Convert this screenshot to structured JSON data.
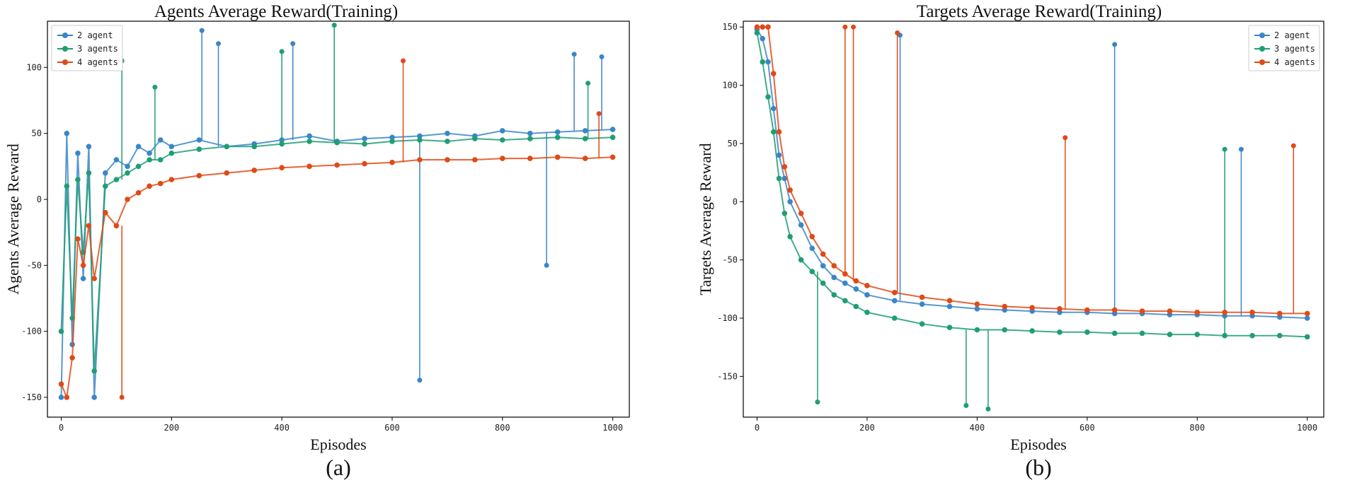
{
  "colors": {
    "series": [
      "#3a86c8",
      "#1f9e74",
      "#e04a16"
    ],
    "axis": "#000000",
    "text": "#111111"
  },
  "chart_data": [
    {
      "type": "line",
      "title": "Agents Average Reward(Training)",
      "xlabel": "Episodes",
      "ylabel": "Agents Average Reward",
      "caption": "(a)",
      "xlim": [
        -25,
        1030
      ],
      "ylim": [
        -165,
        135
      ],
      "xticks": [
        0,
        200,
        400,
        600,
        800,
        1000
      ],
      "xtick_labels": [
        "0",
        "200",
        "400",
        "600",
        "800",
        "1000"
      ],
      "yticks": [
        -150,
        -100,
        -50,
        0,
        50,
        100
      ],
      "ytick_labels": [
        "-150",
        "-100",
        "-50",
        "0",
        "50",
        "100"
      ],
      "legend": {
        "position": "top-left",
        "entries": [
          "2 agent",
          "3 agents",
          "4 agents"
        ]
      },
      "series": [
        {
          "name": "2 agent",
          "x": [
            0,
            10,
            20,
            30,
            40,
            50,
            60,
            80,
            100,
            120,
            140,
            160,
            180,
            200,
            250,
            300,
            350,
            400,
            450,
            500,
            550,
            600,
            650,
            700,
            750,
            800,
            850,
            900,
            950,
            1000
          ],
          "values": [
            -150,
            50,
            -110,
            35,
            -60,
            40,
            -150,
            20,
            30,
            25,
            40,
            35,
            45,
            40,
            45,
            40,
            42,
            45,
            48,
            44,
            46,
            47,
            48,
            50,
            48,
            52,
            50,
            51,
            52,
            53
          ],
          "spikes": [
            [
              255,
              128
            ],
            [
              285,
              118
            ],
            [
              420,
              118
            ],
            [
              650,
              -137
            ],
            [
              880,
              -50
            ],
            [
              930,
              110
            ],
            [
              980,
              108
            ]
          ]
        },
        {
          "name": "3 agents",
          "x": [
            0,
            10,
            20,
            30,
            40,
            50,
            60,
            80,
            100,
            120,
            140,
            160,
            180,
            200,
            250,
            300,
            350,
            400,
            450,
            500,
            550,
            600,
            650,
            700,
            750,
            800,
            850,
            900,
            950,
            1000
          ],
          "values": [
            -100,
            10,
            -90,
            15,
            -40,
            20,
            -130,
            10,
            15,
            20,
            25,
            30,
            30,
            35,
            38,
            40,
            40,
            42,
            44,
            43,
            42,
            44,
            45,
            44,
            46,
            45,
            46,
            47,
            46,
            47
          ],
          "spikes": [
            [
              110,
              105
            ],
            [
              170,
              85
            ],
            [
              400,
              112
            ],
            [
              495,
              132
            ],
            [
              955,
              88
            ]
          ]
        },
        {
          "name": "4 agents",
          "x": [
            0,
            10,
            20,
            30,
            40,
            50,
            60,
            80,
            100,
            120,
            140,
            160,
            180,
            200,
            250,
            300,
            350,
            400,
            450,
            500,
            550,
            600,
            650,
            700,
            750,
            800,
            850,
            900,
            950,
            1000
          ],
          "values": [
            -140,
            -150,
            -120,
            -30,
            -50,
            -20,
            -60,
            -10,
            -20,
            0,
            5,
            10,
            12,
            15,
            18,
            20,
            22,
            24,
            25,
            26,
            27,
            28,
            30,
            30,
            30,
            31,
            31,
            32,
            31,
            32
          ],
          "spikes": [
            [
              110,
              -150
            ],
            [
              620,
              105
            ],
            [
              975,
              65
            ]
          ]
        }
      ]
    },
    {
      "type": "line",
      "title": "Targets Average Reward(Training)",
      "xlabel": "Episodes",
      "ylabel": "Targets Average Reward",
      "caption": "(b)",
      "xlim": [
        -25,
        1030
      ],
      "ylim": [
        -185,
        155
      ],
      "xticks": [
        0,
        200,
        400,
        600,
        800,
        1000
      ],
      "xtick_labels": [
        "0",
        "200",
        "400",
        "600",
        "800",
        "1000"
      ],
      "yticks": [
        -150,
        -100,
        -50,
        0,
        50,
        100,
        150
      ],
      "ytick_labels": [
        "-150",
        "-100",
        "-50",
        "0",
        "50",
        "100",
        "150"
      ],
      "legend": {
        "position": "top-right",
        "entries": [
          "2 agent",
          "3 agents",
          "4 agents"
        ]
      },
      "series": [
        {
          "name": "2 agent",
          "x": [
            0,
            10,
            20,
            30,
            40,
            50,
            60,
            80,
            100,
            120,
            140,
            160,
            180,
            200,
            250,
            300,
            350,
            400,
            450,
            500,
            550,
            600,
            650,
            700,
            750,
            800,
            850,
            900,
            950,
            1000
          ],
          "values": [
            148,
            140,
            120,
            80,
            40,
            20,
            0,
            -20,
            -40,
            -55,
            -65,
            -70,
            -75,
            -80,
            -85,
            -88,
            -90,
            -92,
            -93,
            -94,
            -95,
            -95,
            -96,
            -96,
            -97,
            -97,
            -98,
            -98,
            -99,
            -100
          ],
          "spikes": [
            [
              260,
              143
            ],
            [
              650,
              135
            ],
            [
              880,
              45
            ]
          ]
        },
        {
          "name": "3 agents",
          "x": [
            0,
            10,
            20,
            30,
            40,
            50,
            60,
            80,
            100,
            120,
            140,
            160,
            180,
            200,
            250,
            300,
            350,
            400,
            450,
            500,
            550,
            600,
            650,
            700,
            750,
            800,
            850,
            900,
            950,
            1000
          ],
          "values": [
            145,
            120,
            90,
            60,
            20,
            -10,
            -30,
            -50,
            -60,
            -70,
            -80,
            -85,
            -90,
            -95,
            -100,
            -105,
            -108,
            -110,
            -110,
            -111,
            -112,
            -112,
            -113,
            -113,
            -114,
            -114,
            -115,
            -115,
            -115,
            -116
          ],
          "spikes": [
            [
              110,
              -172
            ],
            [
              380,
              -175
            ],
            [
              420,
              -178
            ],
            [
              850,
              45
            ]
          ]
        },
        {
          "name": "4 agents",
          "x": [
            0,
            10,
            20,
            30,
            40,
            50,
            60,
            80,
            100,
            120,
            140,
            160,
            180,
            200,
            250,
            300,
            350,
            400,
            450,
            500,
            550,
            600,
            650,
            700,
            750,
            800,
            850,
            900,
            950,
            1000
          ],
          "values": [
            150,
            150,
            150,
            110,
            60,
            30,
            10,
            -10,
            -30,
            -45,
            -55,
            -62,
            -68,
            -72,
            -78,
            -82,
            -85,
            -88,
            -90,
            -91,
            -92,
            -93,
            -93,
            -94,
            -94,
            -95,
            -95,
            -95,
            -96,
            -96
          ],
          "spikes": [
            [
              160,
              150
            ],
            [
              175,
              150
            ],
            [
              255,
              145
            ],
            [
              560,
              55
            ],
            [
              975,
              48
            ]
          ]
        }
      ]
    }
  ]
}
